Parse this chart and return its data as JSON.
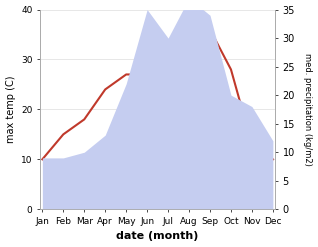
{
  "months": [
    "Jan",
    "Feb",
    "Mar",
    "Apr",
    "May",
    "Jun",
    "Jul",
    "Aug",
    "Sep",
    "Oct",
    "Nov",
    "Dec"
  ],
  "temperature": [
    10,
    15,
    18,
    24,
    27,
    27,
    33,
    36,
    36,
    28,
    13,
    10
  ],
  "precipitation": [
    9,
    9,
    10,
    13,
    22,
    35,
    30,
    37,
    34,
    20,
    18,
    12
  ],
  "temp_color": "#c0392b",
  "precip_fill_color": "#c5cdf0",
  "ylim_left": [
    0,
    40
  ],
  "ylim_right": [
    0,
    35
  ],
  "xlabel": "date (month)",
  "ylabel_left": "max temp (C)",
  "ylabel_right": "med. precipitation (kg/m2)",
  "bg_color": "#ffffff"
}
